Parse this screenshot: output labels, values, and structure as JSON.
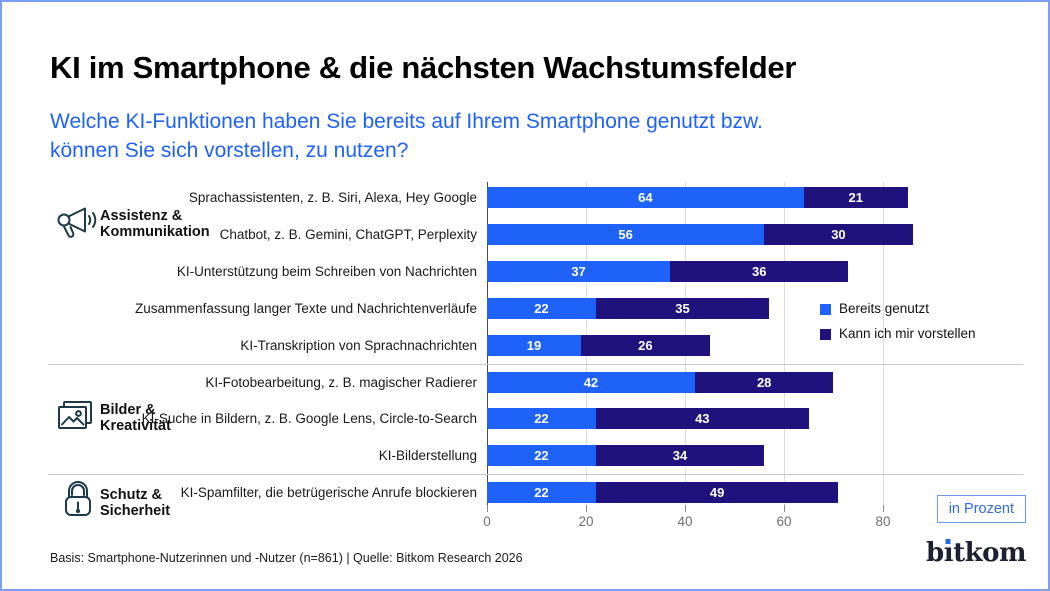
{
  "title": "KI im Smartphone & die nächsten Wachstumsfelder",
  "subtitle": {
    "line1": "Welche KI-Funktionen haben Sie bereits auf Ihrem Smartphone genutzt bzw.",
    "line2": "können Sie sich vorstellen, zu nutzen?"
  },
  "unit_badge": "in Prozent",
  "footer": "Basis: Smartphone-Nutzerinnen und -Nutzer (n=861) | Quelle: Bitkom Research 2026",
  "logo": {
    "text": "bitkom",
    "part1": "b",
    "i_char": "ı",
    "part2": "tkom"
  },
  "colors": {
    "used": "#1E62FA",
    "imagine": "#20127D",
    "subtitle_blue": "#1E62FA",
    "frame_border": "#7B9FF2",
    "icon_stroke": "#1C3A47"
  },
  "chart_data": {
    "type": "bar",
    "orientation": "horizontal",
    "stacked": true,
    "unit": "Prozent",
    "xlim": [
      0,
      100
    ],
    "x_ticks": [
      0,
      20,
      40,
      60,
      80
    ],
    "grid": true,
    "legend_position": "right-middle",
    "categories": [
      "Sprachassistenten, z. B. Siri, Alexa, Hey Google",
      "Chatbot, z. B. Gemini, ChatGPT, Perplexity",
      "KI-Unterstützung beim Schreiben von Nachrichten",
      "Zusammenfassung langer Texte und Nachrichtenverläufe",
      "KI-Transkription von Sprachnachrichten",
      "KI-Fotobearbeitung, z. B. magischer Radierer",
      "KI-Suche in Bildern, z. B. Google Lens, Circle-to-Search",
      "KI-Bilderstellung",
      "KI-Spamfilter, die betrügerische Anrufe blockieren"
    ],
    "series": [
      {
        "name": "Bereits genutzt",
        "color": "#1E62FA",
        "values": [
          64,
          56,
          37,
          22,
          19,
          42,
          22,
          22,
          22
        ]
      },
      {
        "name": "Kann ich mir vorstellen",
        "color": "#20127D",
        "values": [
          21,
          30,
          36,
          35,
          26,
          28,
          43,
          34,
          49
        ]
      }
    ],
    "groups": [
      {
        "label_line1": "Assistenz &",
        "label_line2": "Kommunikation",
        "icon": "megaphone-icon",
        "row_start": 0,
        "row_end": 4
      },
      {
        "label_line1": "Bilder &",
        "label_line2": "Kreativität",
        "icon": "image-icon",
        "row_start": 5,
        "row_end": 7
      },
      {
        "label_line1": "Schutz &",
        "label_line2": "Sicherheit",
        "icon": "lock-icon",
        "row_start": 8,
        "row_end": 8
      }
    ]
  }
}
